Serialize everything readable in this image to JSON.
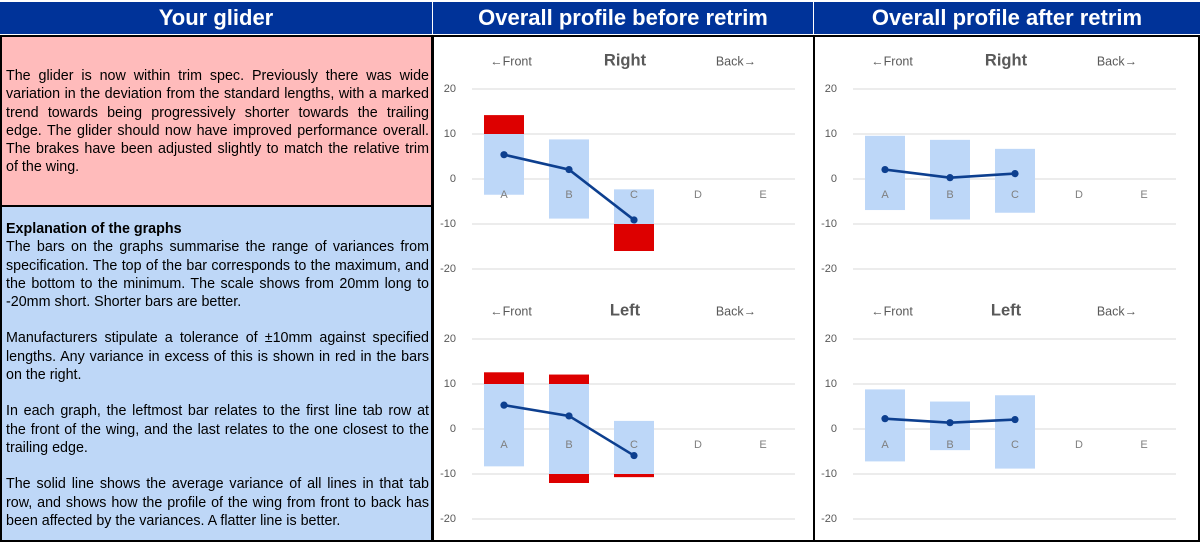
{
  "headers": {
    "glider": "Your glider",
    "before": "Overall profile before retrim",
    "after": "Overall profile after retrim"
  },
  "summary": "The glider is now within trim spec.  Previously there was wide variation in the deviation from the standard lengths, with a marked trend towards being progressively shorter towards the trailing edge.  The glider should now have improved performance overall.  The brakes have been adjusted slightly to match the relative trim of the wing.",
  "explanation": {
    "title": "Explanation of the graphs",
    "p1": "The bars on the graphs summarise the range of variances from specification. The top of the bar corresponds to the maximum, and the bottom to the minimum. The scale shows from 20mm long to -20mm short. Shorter bars are better.",
    "p2": "Manufacturers stipulate a tolerance of ±10mm against specified lengths. Any variance in excess of this is shown in red in the bars on the right.",
    "p3": "In each graph, the leftmost bar relates to the first line tab row at the front of the wing, and the last relates to the one closest to the trailing edge.",
    "p4": "The solid line shows the average variance of all lines in that tab row, and shows how the profile of the wing from front to back has been affected by the variances. A flatter line is better."
  },
  "colors": {
    "header_bg": "#003399",
    "summary_bg": "#ffbbbb",
    "explain_bg": "#bed7f7",
    "bar": "#bdd7f8",
    "excess": "#dd0000",
    "line": "#0d3f8f",
    "grid": "#d9d9d9"
  },
  "chart_data": [
    {
      "type": "bar",
      "group": "before",
      "title": "Right",
      "front_label": "←Front",
      "back_label": "Back→",
      "categories": [
        "A",
        "B",
        "C",
        "D",
        "E"
      ],
      "ylim": [
        -20,
        20
      ],
      "yticks": [
        20,
        10,
        0,
        -10,
        -20
      ],
      "tolerance": 10,
      "range_min": [
        -3.5,
        -8.8,
        -16,
        null,
        null
      ],
      "range_max": [
        14.2,
        8.8,
        -2.3,
        null,
        null
      ],
      "average": [
        5.4,
        2.1,
        -9.1,
        null,
        null
      ]
    },
    {
      "type": "bar",
      "group": "before",
      "title": "Left",
      "front_label": "←Front",
      "back_label": "Back→",
      "categories": [
        "A",
        "B",
        "C",
        "D",
        "E"
      ],
      "ylim": [
        -20,
        20
      ],
      "yticks": [
        20,
        10,
        0,
        -10,
        -20
      ],
      "tolerance": 10,
      "range_min": [
        -8.3,
        -12,
        -10.7,
        null,
        null
      ],
      "range_max": [
        12.6,
        12.1,
        1.8,
        null,
        null
      ],
      "average": [
        5.3,
        2.9,
        -5.9,
        null,
        null
      ]
    },
    {
      "type": "bar",
      "group": "after",
      "title": "Right",
      "front_label": "←Front",
      "back_label": "Back→",
      "categories": [
        "A",
        "B",
        "C",
        "D",
        "E"
      ],
      "ylim": [
        -20,
        20
      ],
      "yticks": [
        20,
        10,
        0,
        -10,
        -20
      ],
      "tolerance": 10,
      "range_min": [
        -6.9,
        -9,
        -7.5,
        null,
        null
      ],
      "range_max": [
        9.6,
        8.7,
        6.7,
        null,
        null
      ],
      "average": [
        2.1,
        0.3,
        1.2,
        null,
        null
      ]
    },
    {
      "type": "bar",
      "group": "after",
      "title": "Left",
      "front_label": "←Front",
      "back_label": "Back→",
      "categories": [
        "A",
        "B",
        "C",
        "D",
        "E"
      ],
      "ylim": [
        -20,
        20
      ],
      "yticks": [
        20,
        10,
        0,
        -10,
        -20
      ],
      "tolerance": 10,
      "range_min": [
        -7.2,
        -4.7,
        -8.8,
        null,
        null
      ],
      "range_max": [
        8.8,
        6.1,
        7.5,
        null,
        null
      ],
      "average": [
        2.3,
        1.4,
        2.1,
        null,
        null
      ]
    }
  ]
}
